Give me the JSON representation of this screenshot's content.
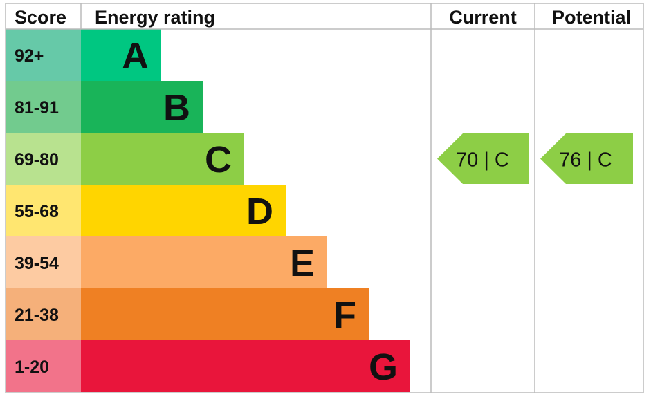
{
  "headers": {
    "score": "Score",
    "rating": "Energy rating",
    "current": "Current",
    "potential": "Potential"
  },
  "chart_data": {
    "type": "bar",
    "bands": [
      {
        "letter": "A",
        "range": "92+",
        "color": "#00c781",
        "score_color": "#66c9a8"
      },
      {
        "letter": "B",
        "range": "81-91",
        "color": "#19b459",
        "score_color": "#72cb8e"
      },
      {
        "letter": "C",
        "range": "69-80",
        "color": "#8dce46",
        "score_color": "#b8e28f"
      },
      {
        "letter": "D",
        "range": "55-68",
        "color": "#ffd500",
        "score_color": "#ffe670"
      },
      {
        "letter": "E",
        "range": "39-54",
        "color": "#fcaa65",
        "score_color": "#fdcba2"
      },
      {
        "letter": "F",
        "range": "21-38",
        "color": "#ef8023",
        "score_color": "#f5b07a"
      },
      {
        "letter": "G",
        "range": "1-20",
        "color": "#e9153b",
        "score_color": "#f2738a"
      }
    ],
    "current": {
      "score": 70,
      "letter": "C",
      "label": "70 |  C",
      "color": "#8dce46"
    },
    "potential": {
      "score": 76,
      "letter": "C",
      "label": "76 |  C",
      "color": "#8dce46"
    }
  }
}
